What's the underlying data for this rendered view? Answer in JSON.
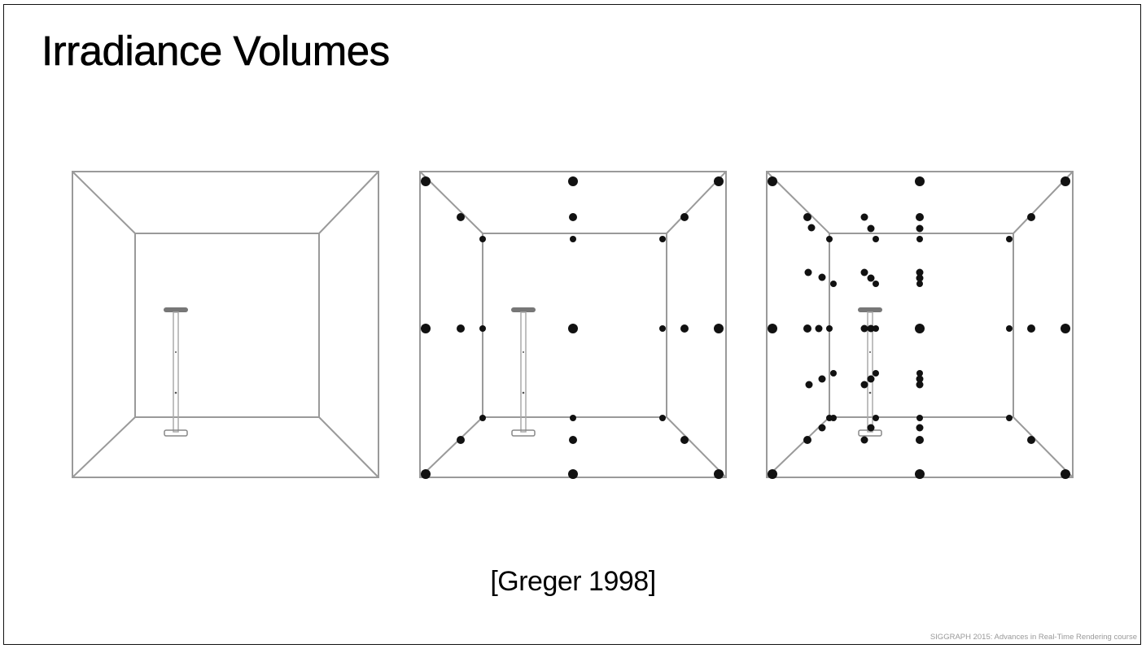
{
  "slide": {
    "title": "Irradiance Volumes",
    "caption": "[Greger 1998]",
    "footer": "SIGGRAPH 2015: Advances in Real-Time Rendering course"
  },
  "colors": {
    "frame": "#9a9a9a",
    "probe": "#111111",
    "light_fixture": "#777777"
  },
  "panels": [
    {
      "name": "empty-room",
      "probe_level": 0
    },
    {
      "name": "uniform-grid-room",
      "probe_level": 1
    },
    {
      "name": "adaptive-grid-room",
      "probe_level": 2
    }
  ]
}
